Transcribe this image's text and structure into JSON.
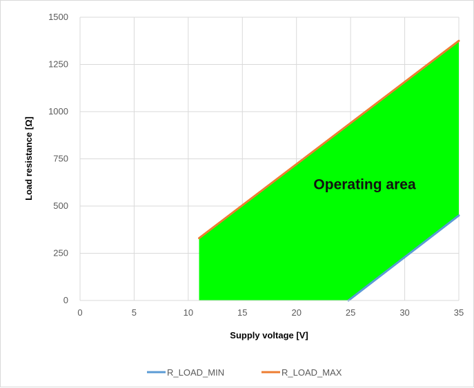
{
  "chart_data": {
    "type": "area",
    "title": "",
    "xlabel": "Supply voltage [V]",
    "ylabel": "Load resistance [Ω]",
    "xlim": [
      0,
      35
    ],
    "ylim": [
      0,
      1500
    ],
    "x_ticks": [
      0,
      5,
      10,
      15,
      20,
      25,
      30,
      35
    ],
    "y_ticks": [
      0,
      250,
      500,
      750,
      1000,
      1250,
      1500
    ],
    "grid": true,
    "legend_position": "bottom",
    "series": [
      {
        "name": "R_LOAD_MIN",
        "color": "#5b9bd5",
        "points": [
          [
            24.8,
            0
          ],
          [
            35,
            450
          ]
        ]
      },
      {
        "name": "R_LOAD_MAX",
        "color": "#ed7d31",
        "points": [
          [
            11,
            330
          ],
          [
            35,
            1375
          ]
        ]
      }
    ],
    "fill": {
      "color": "#00ff00",
      "between": [
        "R_LOAD_MIN",
        "R_LOAD_MAX"
      ],
      "x_range": [
        11,
        35
      ]
    },
    "annotation": {
      "text": "Operating area",
      "x": 26.3,
      "y": 590
    }
  }
}
